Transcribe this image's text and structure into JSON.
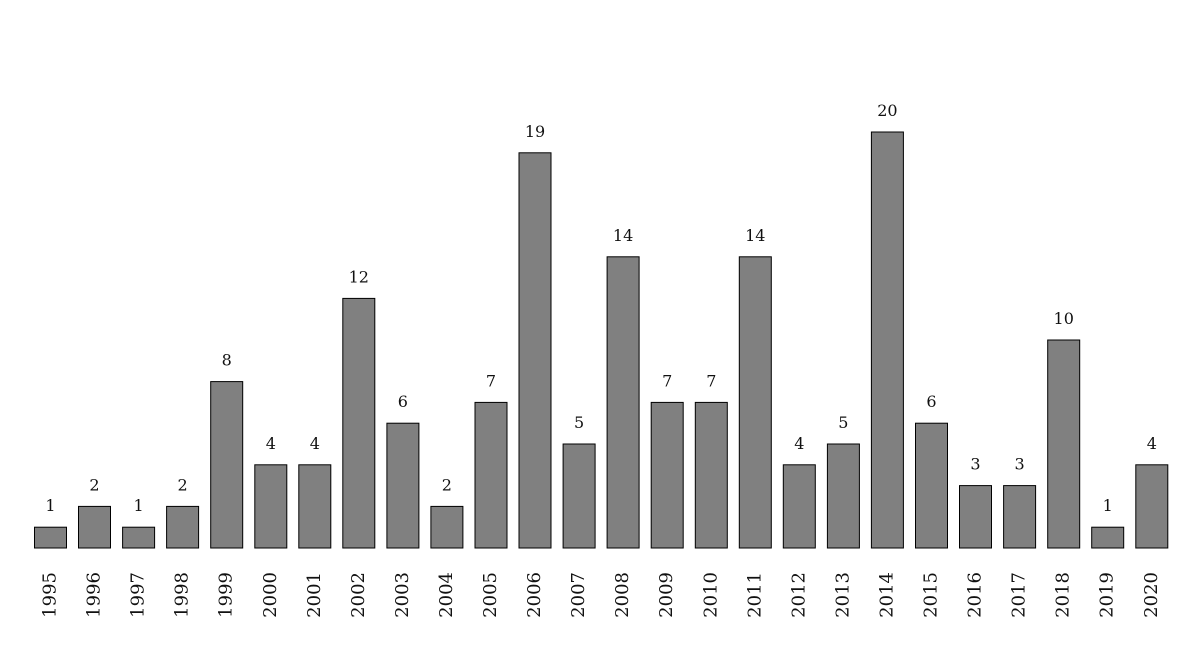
{
  "chart_data": {
    "type": "bar",
    "title": "",
    "xlabel": "",
    "ylabel": "",
    "categories": [
      "1995",
      "1996",
      "1997",
      "1998",
      "1999",
      "2000",
      "2001",
      "2002",
      "2003",
      "2004",
      "2005",
      "2006",
      "2007",
      "2008",
      "2009",
      "2010",
      "2011",
      "2012",
      "2013",
      "2014",
      "2015",
      "2016",
      "2017",
      "2018",
      "2019",
      "2020"
    ],
    "values": [
      1,
      2,
      1,
      2,
      8,
      4,
      4,
      12,
      6,
      2,
      7,
      19,
      5,
      14,
      7,
      7,
      14,
      4,
      5,
      20,
      6,
      3,
      3,
      10,
      1,
      4
    ],
    "ylim": [
      0,
      20
    ],
    "grid": false,
    "legend": "none",
    "bar_color": "#808080",
    "bar_edge_color": "#000000",
    "data_labels": true,
    "tick_label_rotation": "vertical"
  }
}
